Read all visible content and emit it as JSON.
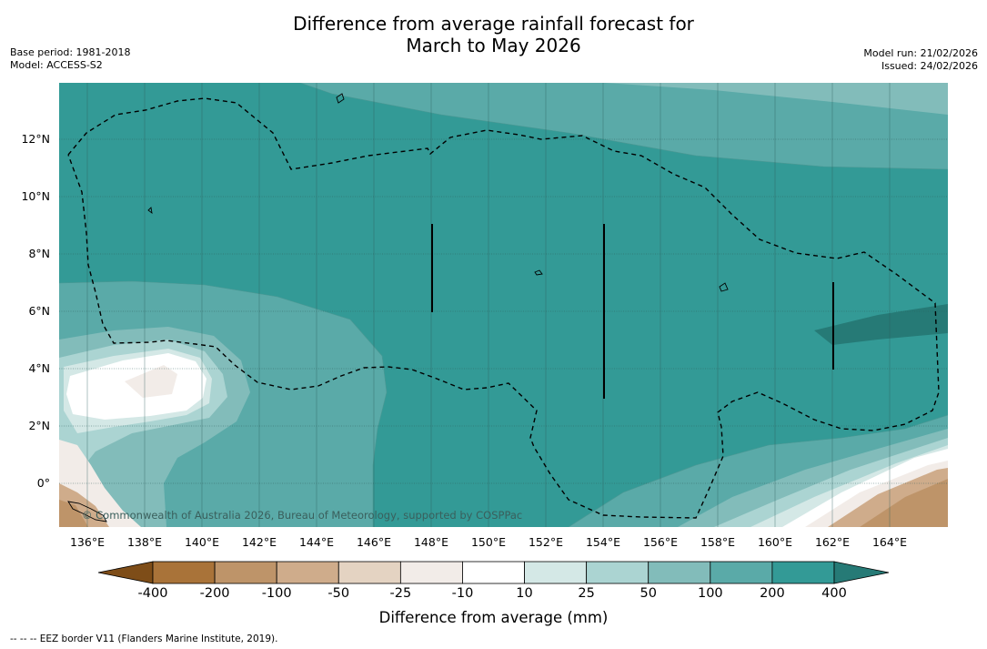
{
  "title_line1": "Difference from average rainfall forecast for",
  "title_line2": "March to May 2026",
  "base_period": "Base period: 1981-2018",
  "model": "Model: ACCESS-S2",
  "model_run": "Model run: 21/02/2026",
  "issued": "Issued: 24/02/2026",
  "credit": "© Commonwealth of Australia 2026, Bureau of Meteorology, supported by COSPPac",
  "footnote": "--  --  -- EEZ border V11 (Flanders Marine Institute, 2019).",
  "latitude_labels": [
    "12°N",
    "10°N",
    "8°N",
    "6°N",
    "4°N",
    "2°N",
    "0°"
  ],
  "longitude_labels": [
    "136°E",
    "138°E",
    "140°E",
    "142°E",
    "144°E",
    "146°E",
    "148°E",
    "150°E",
    "152°E",
    "154°E",
    "156°E",
    "158°E",
    "160°E",
    "162°E",
    "164°E"
  ],
  "colorbar": {
    "label": "Difference from average (mm)",
    "ticks": [
      "-400",
      "-200",
      "-100",
      "-50",
      "-25",
      "-10",
      "10",
      "25",
      "50",
      "100",
      "200",
      "400"
    ],
    "colors": [
      "#7e4d18",
      "#a97339",
      "#be9469",
      "#cfac8b",
      "#e4d3c2",
      "#f2ece8",
      "#ffffff",
      "#d4e8e6",
      "#abd4d2",
      "#82bcba",
      "#5aaaa8",
      "#339a96",
      "#267a76"
    ]
  },
  "legend_colors": {
    "band_400_plus": "#267a76",
    "band_200_400": "#339a96",
    "band_100_200": "#5aaaa8",
    "band_50_100": "#82bcba",
    "band_25_50": "#abd4d2",
    "band_10_25": "#d4e8e6",
    "band_neutral": "#ffffff",
    "band_dry_light": "#f2ece8",
    "band_dry_mid": "#e4d3c2",
    "band_dry": "#cfac8b",
    "band_dry_strong": "#be9469"
  }
}
